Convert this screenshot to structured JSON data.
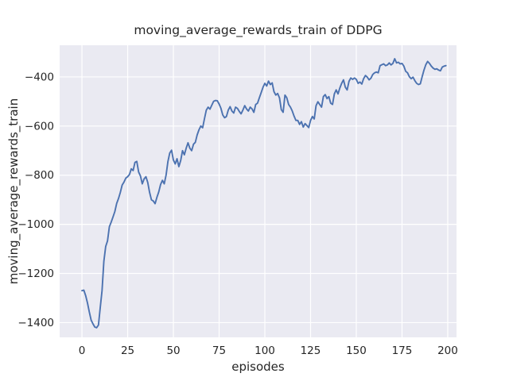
{
  "figure": {
    "title": "moving_average_rewards_train of DDPG",
    "xlabel": "episodes",
    "ylabel": "moving_average_rewards_train"
  },
  "chart_data": {
    "type": "line",
    "title": "moving_average_rewards_train of DDPG",
    "xlabel": "episodes",
    "ylabel": "moving_average_rewards_train",
    "grid": true,
    "legend": false,
    "xlim": [
      -12.2,
      204.8
    ],
    "ylim": [
      -1460,
      -271
    ],
    "xticks": [
      0,
      25,
      50,
      75,
      100,
      125,
      150,
      175,
      200
    ],
    "xtick_labels": [
      "0",
      "25",
      "50",
      "75",
      "100",
      "125",
      "150",
      "175",
      "200"
    ],
    "yticks": [
      -400,
      -600,
      -800,
      -1000,
      -1200,
      -1400
    ],
    "ytick_labels": [
      "−400",
      "−600",
      "−800",
      "−1000",
      "−1200",
      "−1400"
    ],
    "style": {
      "fig_bg": "#ffffff",
      "plot_bg": "#eaeaf2",
      "grid_color": "#ffffff",
      "line_color": "#4c72b0",
      "text_color": "#262626"
    },
    "series": [
      {
        "name": "moving_average_rewards_train",
        "color": "#4c72b0",
        "x": [
          0,
          1,
          2,
          3,
          4,
          5,
          6,
          7,
          8,
          9,
          10,
          11,
          12,
          13,
          14,
          15,
          16,
          17,
          18,
          19,
          20,
          21,
          22,
          23,
          24,
          25,
          26,
          27,
          28,
          29,
          30,
          31,
          32,
          33,
          34,
          35,
          36,
          37,
          38,
          39,
          40,
          41,
          42,
          43,
          44,
          45,
          46,
          47,
          48,
          49,
          50,
          51,
          52,
          53,
          54,
          55,
          56,
          57,
          58,
          59,
          60,
          61,
          62,
          63,
          64,
          65,
          66,
          67,
          68,
          69,
          70,
          71,
          72,
          73,
          74,
          75,
          76,
          77,
          78,
          79,
          80,
          81,
          82,
          83,
          84,
          85,
          86,
          87,
          88,
          89,
          90,
          91,
          92,
          93,
          94,
          95,
          96,
          97,
          98,
          99,
          100,
          101,
          102,
          103,
          104,
          105,
          106,
          107,
          108,
          109,
          110,
          111,
          112,
          113,
          114,
          115,
          116,
          117,
          118,
          119,
          120,
          121,
          122,
          123,
          124,
          125,
          126,
          127,
          128,
          129,
          130,
          131,
          132,
          133,
          134,
          135,
          136,
          137,
          138,
          139,
          140,
          141,
          142,
          143,
          144,
          145,
          146,
          147,
          148,
          149,
          150,
          151,
          152,
          153,
          154,
          155,
          156,
          157,
          158,
          159,
          160,
          161,
          162,
          163,
          164,
          165,
          166,
          167,
          168,
          169,
          170,
          171,
          172,
          173,
          174,
          175,
          176,
          177,
          178,
          179,
          180,
          181,
          182,
          183,
          184,
          185,
          186,
          187,
          188,
          189,
          190,
          191,
          192,
          193,
          194,
          195,
          196,
          197,
          198,
          199
        ],
        "y": [
          -1270,
          -1268,
          -1290,
          -1320,
          -1357,
          -1390,
          -1405,
          -1418,
          -1421,
          -1410,
          -1340,
          -1270,
          -1150,
          -1090,
          -1067,
          -1010,
          -991,
          -970,
          -948,
          -915,
          -895,
          -870,
          -840,
          -828,
          -812,
          -806,
          -797,
          -774,
          -781,
          -748,
          -744,
          -787,
          -803,
          -835,
          -815,
          -806,
          -830,
          -870,
          -900,
          -905,
          -916,
          -890,
          -868,
          -838,
          -821,
          -835,
          -800,
          -745,
          -710,
          -698,
          -738,
          -754,
          -733,
          -765,
          -740,
          -700,
          -717,
          -690,
          -668,
          -690,
          -700,
          -674,
          -666,
          -636,
          -615,
          -600,
          -607,
          -570,
          -535,
          -523,
          -531,
          -515,
          -499,
          -496,
          -497,
          -510,
          -528,
          -555,
          -566,
          -561,
          -535,
          -521,
          -539,
          -547,
          -523,
          -528,
          -540,
          -550,
          -535,
          -517,
          -530,
          -539,
          -523,
          -530,
          -544,
          -512,
          -507,
          -485,
          -464,
          -442,
          -426,
          -437,
          -417,
          -431,
          -424,
          -460,
          -474,
          -467,
          -485,
          -533,
          -544,
          -474,
          -485,
          -512,
          -523,
          -539,
          -560,
          -577,
          -577,
          -593,
          -582,
          -604,
          -590,
          -598,
          -606,
          -577,
          -561,
          -571,
          -517,
          -501,
          -512,
          -523,
          -480,
          -472,
          -488,
          -480,
          -507,
          -512,
          -469,
          -453,
          -469,
          -445,
          -426,
          -412,
          -442,
          -453,
          -418,
          -404,
          -410,
          -404,
          -410,
          -426,
          -421,
          -429,
          -407,
          -394,
          -401,
          -412,
          -405,
          -390,
          -383,
          -380,
          -383,
          -354,
          -350,
          -347,
          -354,
          -351,
          -343,
          -351,
          -345,
          -326,
          -343,
          -340,
          -347,
          -345,
          -356,
          -377,
          -383,
          -399,
          -407,
          -401,
          -415,
          -426,
          -431,
          -428,
          -399,
          -372,
          -350,
          -337,
          -345,
          -356,
          -364,
          -369,
          -367,
          -372,
          -375,
          -360,
          -356,
          -354
        ]
      }
    ]
  }
}
